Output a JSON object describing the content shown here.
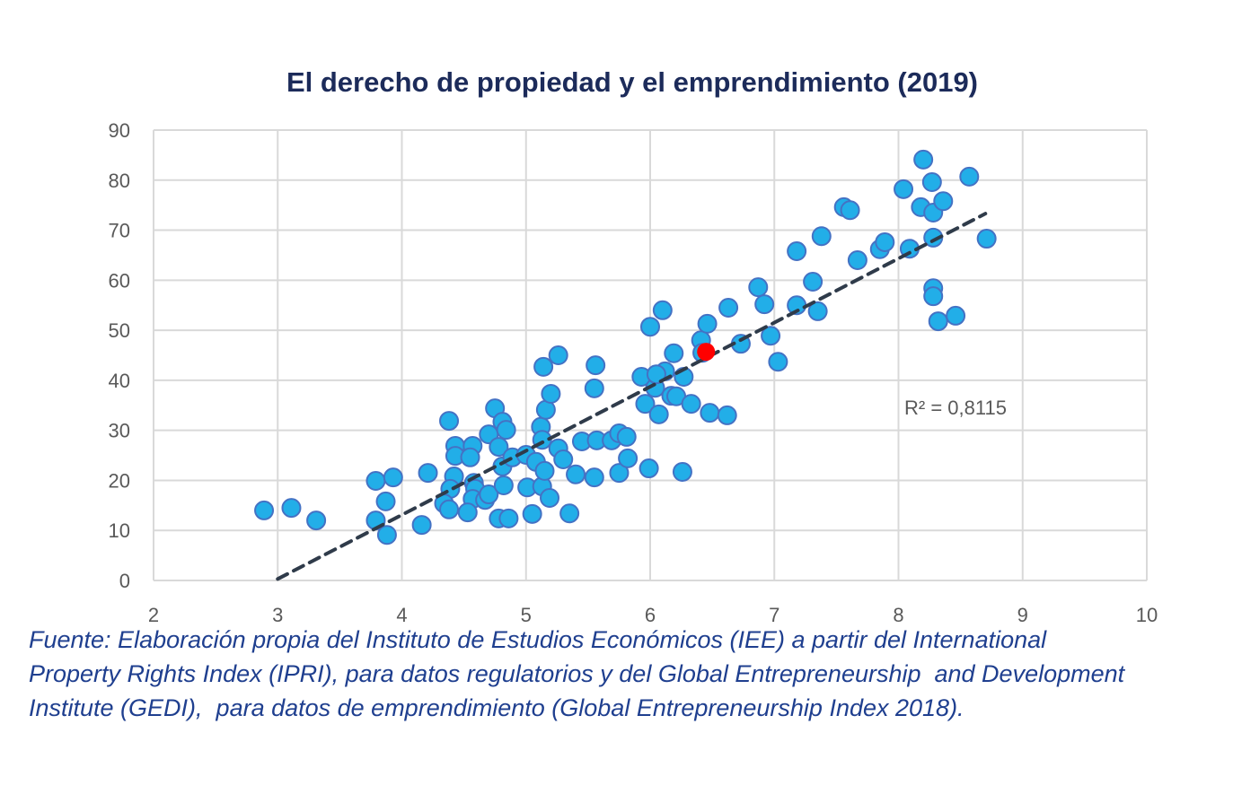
{
  "chart_data": {
    "type": "scatter",
    "title": "El derecho de propiedad y el emprendimiento (2019)",
    "xlabel": "",
    "ylabel": "",
    "xlim": [
      2,
      10
    ],
    "ylim": [
      0,
      90
    ],
    "xticks": [
      "2",
      "3",
      "4",
      "5",
      "6",
      "7",
      "8",
      "9",
      "10"
    ],
    "yticks": [
      "0",
      "10",
      "20",
      "30",
      "40",
      "50",
      "60",
      "70",
      "80",
      "90"
    ],
    "grid": true,
    "colors": {
      "points": "#22aee8",
      "point_border": "#4472c4",
      "highlight": "#ff0000",
      "trendline": "#2f3b4a"
    },
    "points": [
      [
        2.89,
        14.0
      ],
      [
        3.11,
        14.5
      ],
      [
        3.31,
        12.0
      ],
      [
        3.79,
        19.9
      ],
      [
        3.93,
        20.6
      ],
      [
        3.87,
        15.8
      ],
      [
        3.79,
        12.0
      ],
      [
        3.88,
        9.1
      ],
      [
        4.16,
        11.1
      ],
      [
        4.21,
        21.5
      ],
      [
        4.38,
        31.9
      ],
      [
        4.43,
        26.9
      ],
      [
        4.43,
        24.9
      ],
      [
        4.42,
        20.8
      ],
      [
        4.39,
        18.3
      ],
      [
        4.34,
        15.4
      ],
      [
        4.38,
        14.2
      ],
      [
        4.57,
        26.9
      ],
      [
        4.55,
        24.6
      ],
      [
        4.58,
        19.5
      ],
      [
        4.59,
        18.3
      ],
      [
        4.57,
        16.3
      ],
      [
        4.53,
        13.6
      ],
      [
        4.67,
        16.1
      ],
      [
        4.7,
        17.2
      ],
      [
        4.7,
        29.2
      ],
      [
        4.75,
        34.4
      ],
      [
        4.78,
        26.7
      ],
      [
        4.81,
        31.7
      ],
      [
        4.84,
        30.1
      ],
      [
        4.81,
        22.8
      ],
      [
        4.82,
        19.0
      ],
      [
        4.78,
        12.4
      ],
      [
        4.86,
        12.4
      ],
      [
        4.89,
        24.6
      ],
      [
        5.0,
        25.1
      ],
      [
        5.01,
        18.6
      ],
      [
        5.05,
        13.3
      ],
      [
        5.08,
        23.7
      ],
      [
        5.12,
        30.7
      ],
      [
        5.13,
        28.1
      ],
      [
        5.13,
        18.8
      ],
      [
        5.16,
        34.1
      ],
      [
        5.15,
        21.9
      ],
      [
        5.19,
        16.5
      ],
      [
        5.14,
        42.7
      ],
      [
        5.2,
        37.3
      ],
      [
        5.26,
        45.0
      ],
      [
        5.26,
        26.4
      ],
      [
        5.3,
        24.2
      ],
      [
        5.35,
        13.4
      ],
      [
        5.4,
        21.2
      ],
      [
        5.45,
        27.8
      ],
      [
        5.56,
        43.0
      ],
      [
        5.55,
        38.4
      ],
      [
        5.57,
        28.0
      ],
      [
        5.55,
        20.6
      ],
      [
        5.69,
        28.0
      ],
      [
        5.75,
        29.4
      ],
      [
        5.81,
        28.7
      ],
      [
        5.75,
        21.5
      ],
      [
        5.82,
        24.4
      ],
      [
        5.93,
        40.7
      ],
      [
        5.96,
        35.3
      ],
      [
        5.99,
        22.4
      ],
      [
        6.0,
        50.7
      ],
      [
        6.04,
        38.5
      ],
      [
        6.07,
        33.2
      ],
      [
        6.1,
        54.0
      ],
      [
        6.12,
        41.8
      ],
      [
        6.05,
        41.2
      ],
      [
        6.17,
        36.9
      ],
      [
        6.19,
        45.4
      ],
      [
        6.21,
        36.8
      ],
      [
        6.27,
        40.7
      ],
      [
        6.26,
        21.7
      ],
      [
        6.33,
        35.3
      ],
      [
        6.41,
        48.0
      ],
      [
        6.42,
        45.5
      ],
      [
        6.46,
        51.3
      ],
      [
        6.48,
        33.5
      ],
      [
        6.63,
        54.5
      ],
      [
        6.62,
        33.0
      ],
      [
        6.73,
        47.3
      ],
      [
        6.87,
        58.6
      ],
      [
        6.92,
        55.2
      ],
      [
        6.97,
        48.9
      ],
      [
        7.03,
        43.7
      ],
      [
        7.18,
        65.8
      ],
      [
        7.18,
        55.0
      ],
      [
        7.31,
        59.7
      ],
      [
        7.35,
        53.8
      ],
      [
        7.38,
        68.8
      ],
      [
        7.56,
        74.6
      ],
      [
        7.61,
        74.0
      ],
      [
        7.67,
        64.0
      ],
      [
        7.85,
        66.2
      ],
      [
        7.89,
        67.6
      ],
      [
        8.04,
        78.2
      ],
      [
        8.09,
        66.3
      ],
      [
        8.18,
        74.6
      ],
      [
        8.2,
        84.1
      ],
      [
        8.27,
        79.6
      ],
      [
        8.28,
        68.5
      ],
      [
        8.28,
        73.5
      ],
      [
        8.36,
        75.8
      ],
      [
        8.28,
        58.4
      ],
      [
        8.28,
        56.8
      ],
      [
        8.32,
        51.8
      ],
      [
        8.46,
        52.9
      ],
      [
        8.57,
        80.7
      ],
      [
        8.71,
        68.3
      ]
    ],
    "highlight_point": [
      6.45,
      45.7
    ],
    "trendline": {
      "type": "linear",
      "x": [
        3.0,
        8.7
      ],
      "y": [
        0.3,
        73.3
      ],
      "label": "R² = 0,8115"
    }
  },
  "footnote": {
    "lines": [
      "Fuente: Elaboración propia del Instituto de Estudios Económicos (IEE) a partir del International",
      "Property Rights Index (IPRI), para datos regulatorios y del Global Entrepreneurship  and Development",
      "Institute (GEDI),  para datos de emprendimiento (Global Entrepreneurship Index 2018)."
    ]
  }
}
